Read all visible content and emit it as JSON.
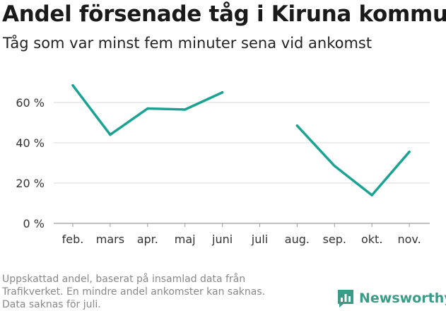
{
  "header": {
    "title": "Andel försenade tåg i Kiruna kommun",
    "subtitle": "Tåg som var minst fem minuter sena vid ankomst"
  },
  "footnote": [
    "Uppskattad andel, baserat på insamlad data från",
    "Trafikverket. En mindre andel ankomster kan saknas.",
    "Data saknas för juli."
  ],
  "brand": {
    "name": "Newsworthy",
    "color": "#3a9b87"
  },
  "chart_data": {
    "type": "line",
    "categories": [
      "feb.",
      "mars",
      "apr.",
      "maj",
      "juni",
      "juli",
      "aug.",
      "sep.",
      "okt.",
      "nov."
    ],
    "series": [
      {
        "values": [
          68.5,
          44,
          57,
          56.5,
          65,
          null,
          48.5,
          28.5,
          14,
          35.5
        ],
        "color": "#1aa393"
      }
    ],
    "ylim": [
      0,
      70
    ],
    "yticks": [
      0,
      20,
      40,
      60
    ],
    "ytick_labels": [
      "0 %",
      "20 %",
      "40 %",
      "60 %"
    ],
    "grid": true
  }
}
